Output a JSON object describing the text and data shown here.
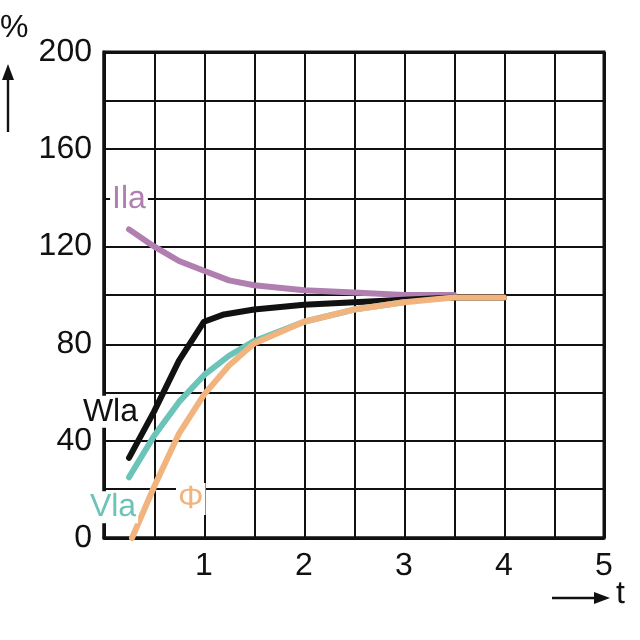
{
  "chart_data": {
    "type": "line",
    "xlabel": "t",
    "ylabel": "%",
    "xlim": [
      0,
      5
    ],
    "ylim": [
      0,
      200
    ],
    "xticks": [
      {
        "value": 0,
        "label": null
      },
      {
        "value": 0.5,
        "label": null
      },
      1,
      {
        "value": 1.5,
        "label": null
      },
      2,
      {
        "value": 2.5,
        "label": null
      },
      3,
      {
        "value": 3.5,
        "label": null
      },
      4,
      {
        "value": 4.5,
        "label": null
      },
      5
    ],
    "yticks": [
      0,
      {
        "value": 20,
        "label": null
      },
      40,
      {
        "value": 60,
        "label": null
      },
      80,
      {
        "value": 100,
        "label": null
      },
      120,
      {
        "value": 140,
        "label": null
      },
      160,
      {
        "value": 180,
        "label": null
      },
      200
    ],
    "grid": true,
    "legend": false,
    "marker": "none",
    "line_style": "solid",
    "series": [
      {
        "name": "Ila",
        "color": "#b07fb0",
        "x": [
          0.25,
          0.5,
          0.75,
          1,
          1.25,
          1.5,
          2,
          2.5,
          3,
          3.5
        ],
        "values": [
          127,
          120,
          114,
          110,
          106,
          104,
          102,
          101,
          100,
          100
        ]
      },
      {
        "name": "Wla",
        "color": "#111111",
        "x": [
          0.25,
          0.5,
          0.75,
          1,
          1.2,
          1.5,
          2,
          2.5,
          3,
          3.5,
          4
        ],
        "values": [
          33,
          52,
          73,
          89,
          92,
          94,
          96,
          97,
          98,
          99,
          99
        ]
      },
      {
        "name": "Vla",
        "color": "#6cc4b8",
        "x": [
          0.25,
          0.5,
          0.75,
          1,
          1.25,
          1.5,
          2,
          2.5,
          3
        ],
        "values": [
          25,
          42,
          56,
          67,
          75,
          81,
          89,
          94,
          97
        ]
      },
      {
        "name": "Φ",
        "color": "#f2b47e",
        "x": [
          0.28,
          0.5,
          0.75,
          1,
          1.25,
          1.5,
          2,
          2.5,
          3,
          3.5,
          4
        ],
        "values": [
          0,
          21,
          43,
          59,
          71,
          80,
          89,
          94,
          97,
          99,
          99
        ]
      }
    ]
  }
}
